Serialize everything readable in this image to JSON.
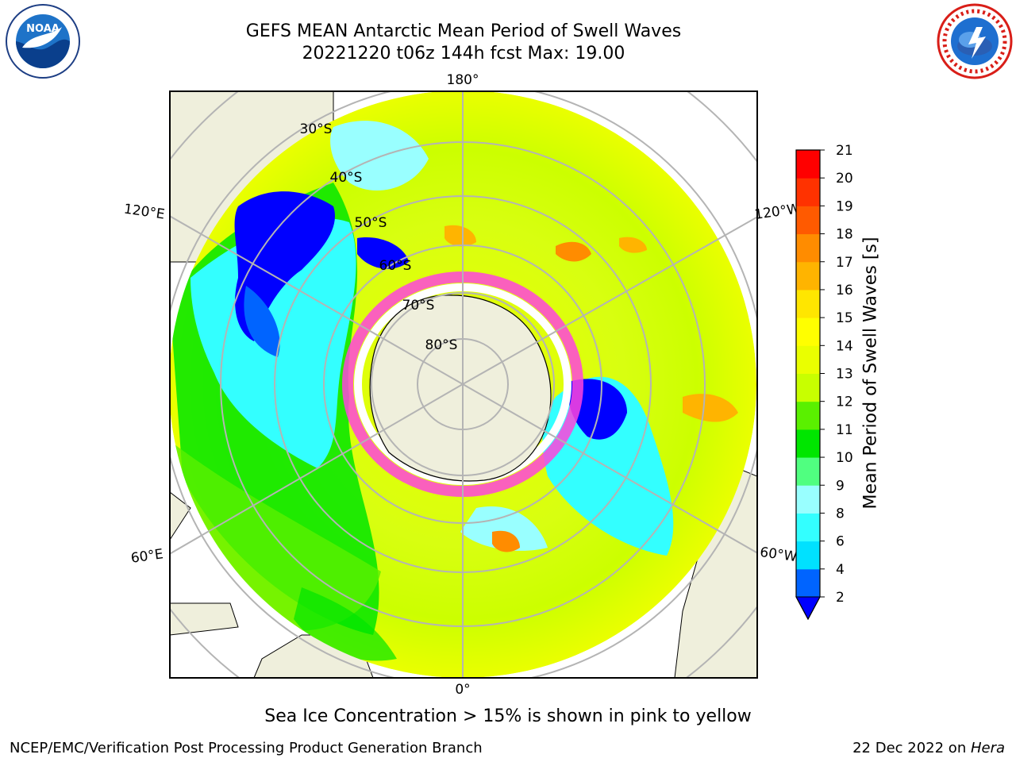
{
  "header": {
    "title_line1": "GEFS MEAN Antarctic Mean Period of Swell Waves",
    "title_line2": "20221220 t06z 144h fcst   Max: 19.00"
  },
  "logos": {
    "left": {
      "name": "noaa-logo",
      "text": "NOAA",
      "ring_text": "NATIONAL OCEANIC AND ATMOSPHERIC ADMINISTRATION"
    },
    "right": {
      "name": "nws-logo",
      "ring_text": "NATIONAL WEATHER SERVICE"
    }
  },
  "map": {
    "projection": "south polar stereographic",
    "longitude_labels": [
      "180°",
      "120°E",
      "120°W",
      "60°E",
      "60°W",
      "0°"
    ],
    "latitude_labels": [
      "30°S",
      "40°S",
      "50°S",
      "60°S",
      "70°S",
      "80°S"
    ]
  },
  "colorbar": {
    "label": "Mean Period of Swell Waves [s]",
    "ticks": [
      "2",
      "4",
      "6",
      "8",
      "9",
      "10",
      "11",
      "12",
      "13",
      "14",
      "15",
      "16",
      "17",
      "18",
      "19",
      "20",
      "21"
    ],
    "colors": [
      "#0064ff",
      "#00e1ff",
      "#33ffff",
      "#99ffff",
      "#50ff80",
      "#00e600",
      "#5af000",
      "#c8ff00",
      "#eaff00",
      "#ffff00",
      "#ffe600",
      "#ffb400",
      "#ff8c00",
      "#ff5a00",
      "#ff3200",
      "#ff0000"
    ],
    "under_color": "#0000ff"
  },
  "caption": "Sea Ice Concentration > 15% is shown in pink to yellow",
  "footer": {
    "left": "NCEP/EMC/Verification Post Processing Product Generation Branch",
    "right_prefix": "22 Dec 2022 on ",
    "right_machine": "Hera"
  }
}
